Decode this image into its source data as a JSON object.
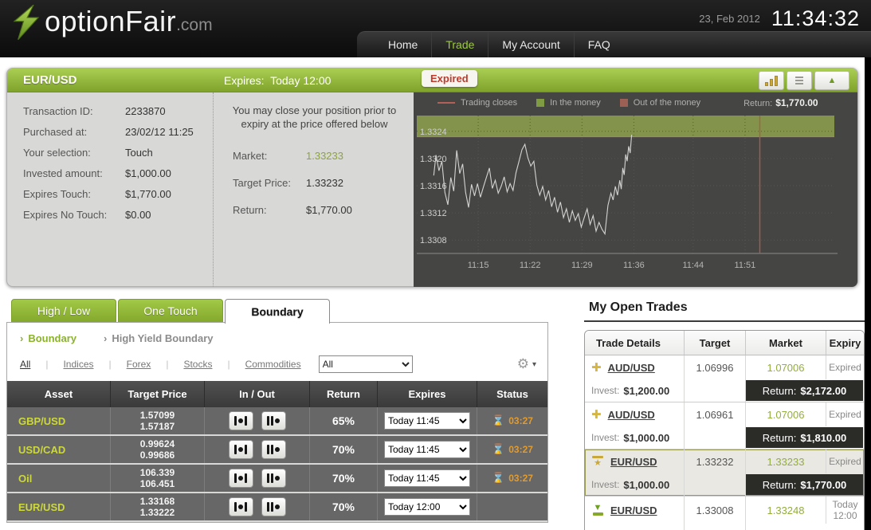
{
  "header": {
    "logo_text": "optionFair",
    "logo_suffix": ".com",
    "date": "23, Feb 2012",
    "time": "11:34:32",
    "nav": [
      {
        "label": "Home",
        "active": false
      },
      {
        "label": "Trade",
        "active": true
      },
      {
        "label": "My Account",
        "active": false
      },
      {
        "label": "FAQ",
        "active": false
      }
    ]
  },
  "trade_panel": {
    "asset": "EUR/USD",
    "expires_label": "Expires:",
    "expires_value": "Today 12:00",
    "status_badge": "Expired",
    "details": [
      {
        "label": "Transaction ID:",
        "value": "2233870"
      },
      {
        "label": "Purchased at:",
        "value": "23/02/12 11:25"
      },
      {
        "label": "Your selection:",
        "value": "Touch"
      },
      {
        "label": "Invested amount:",
        "value": "$1,000.00"
      },
      {
        "label": "Expires Touch:",
        "value": "$1,770.00"
      },
      {
        "label": "Expires No Touch:",
        "value": "$0.00"
      }
    ],
    "close_note": "You may close your position prior to expiry at the price offered below",
    "quote": [
      {
        "label": "Market:",
        "value": "1.33233",
        "highlight": true
      },
      {
        "label": "Target Price:",
        "value": "1.33232",
        "highlight": false
      },
      {
        "label": "Return:",
        "value": "$1,770.00",
        "highlight": false
      }
    ]
  },
  "chart_data": {
    "type": "line",
    "title": "EUR/USD price with in-the-money band",
    "legend": [
      {
        "label": "Trading closes",
        "swatch": "line",
        "color": "#b36058"
      },
      {
        "label": "In the money",
        "swatch": "square",
        "color": "#7f9c42"
      },
      {
        "label": "Out of the money",
        "swatch": "square",
        "color": "#9c6054"
      }
    ],
    "legend_return_label": "Return:",
    "legend_return_value": "$1,770.00",
    "y_ticks": [
      1.3324,
      1.332,
      1.3316,
      1.3312,
      1.3308
    ],
    "x_ticks": [
      "11:15",
      "11:22",
      "11:29",
      "11:36",
      "11:44",
      "11:51"
    ],
    "x_tick_minutes": [
      7,
      14,
      21,
      28,
      36,
      43
    ],
    "ylim": [
      1.33065,
      1.33255
    ],
    "band_from": 1.33232,
    "band_color": "#8a9b4d",
    "trading_close_minute": 45,
    "line_color": "#d4d4d2",
    "close_line_color": "#aa5a4e",
    "series": [
      {
        "name": "EUR/USD",
        "points": [
          [
            1,
            1.33175
          ],
          [
            1.3,
            1.33205
          ],
          [
            1.7,
            1.33182
          ],
          [
            2.1,
            1.33196
          ],
          [
            2.5,
            1.3315
          ],
          [
            2.9,
            1.33132
          ],
          [
            3.3,
            1.33172
          ],
          [
            3.7,
            1.33152
          ],
          [
            4.1,
            1.33212
          ],
          [
            4.5,
            1.33178
          ],
          [
            4.9,
            1.33192
          ],
          [
            5.3,
            1.3315
          ],
          [
            5.7,
            1.33128
          ],
          [
            6.1,
            1.33162
          ],
          [
            6.5,
            1.33145
          ],
          [
            6.9,
            1.33163
          ],
          [
            7.3,
            1.33143
          ],
          [
            7.7,
            1.33158
          ],
          [
            8.1,
            1.33172
          ],
          [
            8.5,
            1.33186
          ],
          [
            8.9,
            1.33156
          ],
          [
            9.3,
            1.33168
          ],
          [
            9.7,
            1.33149
          ],
          [
            10.1,
            1.33159
          ],
          [
            10.5,
            1.33173
          ],
          [
            10.9,
            1.33151
          ],
          [
            11.3,
            1.33163
          ],
          [
            11.7,
            1.33153
          ],
          [
            12.1,
            1.33179
          ],
          [
            12.5,
            1.33196
          ],
          [
            12.9,
            1.33213
          ],
          [
            13.3,
            1.33221
          ],
          [
            13.7,
            1.33201
          ],
          [
            14.1,
            1.33189
          ],
          [
            14.5,
            1.33196
          ],
          [
            14.9,
            1.33161
          ],
          [
            15.3,
            1.33146
          ],
          [
            15.7,
            1.33159
          ],
          [
            16.1,
            1.33139
          ],
          [
            16.5,
            1.33153
          ],
          [
            16.9,
            1.33129
          ],
          [
            17.3,
            1.33143
          ],
          [
            17.7,
            1.33121
          ],
          [
            18.1,
            1.33136
          ],
          [
            18.5,
            1.33113
          ],
          [
            18.9,
            1.33126
          ],
          [
            19.3,
            1.33106
          ],
          [
            19.7,
            1.33123
          ],
          [
            20.1,
            1.33109
          ],
          [
            20.5,
            1.33119
          ],
          [
            20.9,
            1.33099
          ],
          [
            21.3,
            1.33113
          ],
          [
            21.7,
            1.33126
          ],
          [
            22.1,
            1.33103
          ],
          [
            22.5,
            1.33116
          ],
          [
            22.9,
            1.33093
          ],
          [
            23.3,
            1.33106
          ],
          [
            23.7,
            1.33096
          ],
          [
            24.1,
            1.33089
          ],
          [
            24.5,
            1.33131
          ],
          [
            24.9,
            1.33149
          ],
          [
            25.2,
            1.33139
          ],
          [
            25.5,
            1.33159
          ],
          [
            25.8,
            1.33146
          ],
          [
            26.1,
            1.33168
          ],
          [
            26.3,
            1.33155
          ],
          [
            26.5,
            1.33186
          ],
          [
            26.7,
            1.33176
          ],
          [
            26.9,
            1.33206
          ],
          [
            27.1,
            1.33196
          ],
          [
            27.3,
            1.33218
          ],
          [
            27.5,
            1.33208
          ],
          [
            27.7,
            1.33235
          ]
        ]
      }
    ]
  },
  "instruments_panel": {
    "tabs": [
      {
        "label": "High / Low",
        "active": false
      },
      {
        "label": "One Touch",
        "active": false
      },
      {
        "label": "Boundary",
        "active": true
      }
    ],
    "breadcrumbs": [
      {
        "label": "Boundary",
        "active": true
      },
      {
        "label": "High Yield Boundary",
        "active": false
      }
    ],
    "filters": [
      {
        "label": "All",
        "active": true
      },
      {
        "label": "Indices",
        "active": false
      },
      {
        "label": "Forex",
        "active": false
      },
      {
        "label": "Stocks",
        "active": false
      },
      {
        "label": "Commodities",
        "active": false
      }
    ],
    "category_select_value": "All",
    "columns": [
      "Asset",
      "Target Price",
      "In / Out",
      "Return",
      "Expires",
      "Status"
    ],
    "rows": [
      {
        "asset": "GBP/USD",
        "prices": [
          "1.57099",
          "1.57187"
        ],
        "payout": "65%",
        "expires": "Today 11:45",
        "countdown": "03:27"
      },
      {
        "asset": "USD/CAD",
        "prices": [
          "0.99624",
          "0.99686"
        ],
        "payout": "70%",
        "expires": "Today 11:45",
        "countdown": "03:27"
      },
      {
        "asset": "Oil",
        "prices": [
          "106.339",
          "106.451"
        ],
        "payout": "70%",
        "expires": "Today 11:45",
        "countdown": "03:27"
      },
      {
        "asset": "EUR/USD",
        "prices": [
          "1.33168",
          "1.33222"
        ],
        "payout": "70%",
        "expires": "Today 12:00",
        "countdown": null
      }
    ]
  },
  "open_trades": {
    "title": "My Open Trades",
    "columns": [
      "Trade Details",
      "Target",
      "Market",
      "Expiry"
    ],
    "invest_label": "Invest:",
    "return_label": "Return:",
    "rows": [
      {
        "icon": "touch-cross",
        "asset": "AUD/USD",
        "target": "1.06996",
        "market": "1.07006",
        "expiry": "Expired",
        "invest": "$1,200.00",
        "return_value": "$2,172.00",
        "highlight": false
      },
      {
        "icon": "touch-cross",
        "asset": "AUD/USD",
        "target": "1.06961",
        "market": "1.07006",
        "expiry": "Expired",
        "invest": "$1,000.00",
        "return_value": "$1,810.00",
        "highlight": false
      },
      {
        "icon": "touch-star",
        "asset": "EUR/USD",
        "target": "1.33232",
        "market": "1.33233",
        "expiry": "Expired",
        "invest": "$1,000.00",
        "return_value": "$1,770.00",
        "highlight": true
      },
      {
        "icon": "low-arrow",
        "asset": "EUR/USD",
        "target": "1.33008",
        "market": "1.33248",
        "expiry": "Today 12:00",
        "invest": "$1,000.00",
        "return_value": null,
        "highlight": false
      }
    ]
  },
  "colors": {
    "accent_green": "#8fb432",
    "expired_red": "#c0392b",
    "market_green": "#93ad3f",
    "countdown_orange": "#e29b2d"
  }
}
